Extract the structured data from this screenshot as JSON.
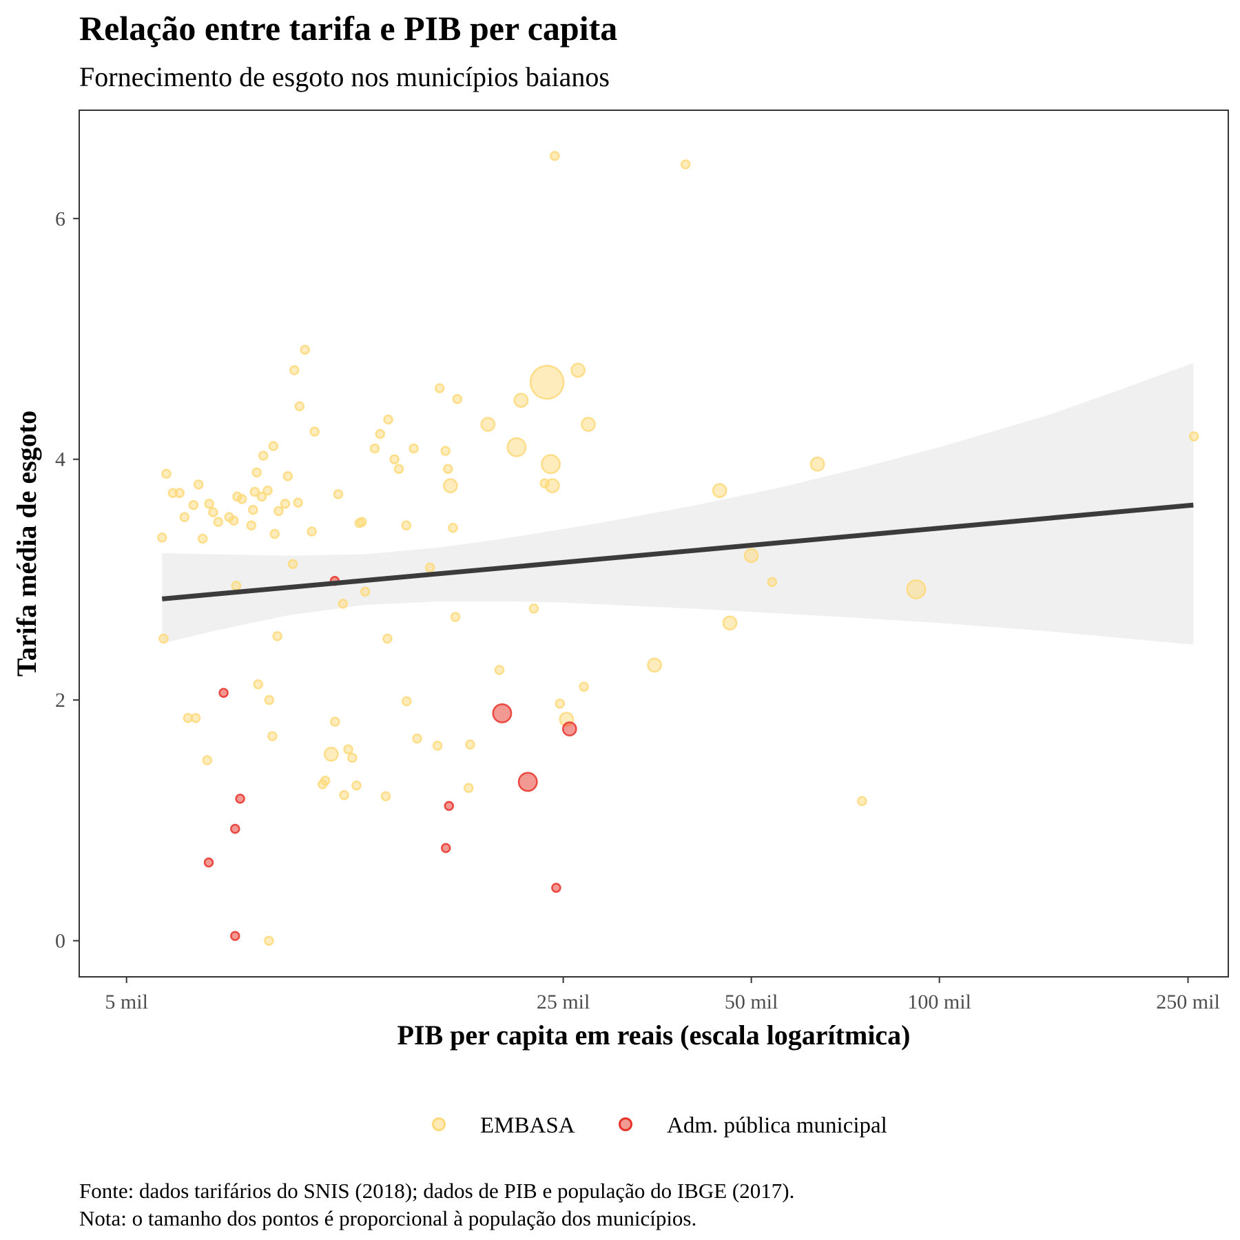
{
  "chart_data": {
    "type": "scatter",
    "title": "Relação entre tarifa e PIB per capita",
    "subtitle": "Fornecimento de esgoto nos municípios baianos",
    "xlabel": "PIB per capita em reais (escala logarítmica)",
    "ylabel": "Tarifa média de esgoto",
    "x_scale": "log",
    "xlim": [
      4200,
      290000
    ],
    "ylim": [
      -0.3,
      6.9
    ],
    "x_ticks": [
      {
        "value": 5000,
        "label": "5 mil"
      },
      {
        "value": 25000,
        "label": "25 mil"
      },
      {
        "value": 50000,
        "label": "50 mil"
      },
      {
        "value": 100000,
        "label": "100 mil"
      },
      {
        "value": 250000,
        "label": "250 mil"
      }
    ],
    "y_ticks": [
      {
        "value": 0,
        "label": "0"
      },
      {
        "value": 2,
        "label": "2"
      },
      {
        "value": 4,
        "label": "4"
      },
      {
        "value": 6,
        "label": "6"
      }
    ],
    "grid": false,
    "legend_position": "bottom",
    "colors": {
      "EMBASA": "#FDD97A",
      "Adm. pública municipal": "#E8332A",
      "trend": "#3B3B3B",
      "ribbon": "#E8E8E8"
    },
    "series": [
      {
        "name": "EMBASA",
        "points": [
          [
            5700,
            3.35,
            1
          ],
          [
            5730,
            2.51,
            1
          ],
          [
            5790,
            3.88,
            1
          ],
          [
            5930,
            3.72,
            1
          ],
          [
            6080,
            3.72,
            1
          ],
          [
            6190,
            3.52,
            1
          ],
          [
            6270,
            1.85,
            1
          ],
          [
            6400,
            3.62,
            1
          ],
          [
            6450,
            1.85,
            1
          ],
          [
            6520,
            3.79,
            1
          ],
          [
            6620,
            3.34,
            1
          ],
          [
            6730,
            1.5,
            1
          ],
          [
            6780,
            3.63,
            1
          ],
          [
            6880,
            3.56,
            1
          ],
          [
            7010,
            3.48,
            1
          ],
          [
            7300,
            3.52,
            1
          ],
          [
            7420,
            3.49,
            1
          ],
          [
            7490,
            2.95,
            1
          ],
          [
            7520,
            3.69,
            1
          ],
          [
            7650,
            3.67,
            1
          ],
          [
            7920,
            3.45,
            1
          ],
          [
            7970,
            3.58,
            1
          ],
          [
            8020,
            3.73,
            1
          ],
          [
            8080,
            3.89,
            1
          ],
          [
            8120,
            2.13,
            1
          ],
          [
            8230,
            3.69,
            1
          ],
          [
            8280,
            4.03,
            1
          ],
          [
            8410,
            3.74,
            1
          ],
          [
            8460,
            2.0,
            1
          ],
          [
            8560,
            1.7,
            1
          ],
          [
            8590,
            4.11,
            1
          ],
          [
            8630,
            3.38,
            1
          ],
          [
            8720,
            2.53,
            1
          ],
          [
            8760,
            3.57,
            1
          ],
          [
            8970,
            3.63,
            1
          ],
          [
            9060,
            3.86,
            1
          ],
          [
            9230,
            3.13,
            1
          ],
          [
            9280,
            4.74,
            1
          ],
          [
            9410,
            3.64,
            1
          ],
          [
            9460,
            4.44,
            1
          ],
          [
            9650,
            4.91,
            1
          ],
          [
            9900,
            3.4,
            1
          ],
          [
            10000,
            4.23,
            1
          ],
          [
            10300,
            1.3,
            1
          ],
          [
            10400,
            1.33,
            1
          ],
          [
            10630,
            1.55,
            2
          ],
          [
            10780,
            1.82,
            1
          ],
          [
            10910,
            3.71,
            1
          ],
          [
            11100,
            2.8,
            1
          ],
          [
            11150,
            1.21,
            1
          ],
          [
            11320,
            1.59,
            1
          ],
          [
            11490,
            1.52,
            1
          ],
          [
            11670,
            1.29,
            1
          ],
          [
            11800,
            3.47,
            1
          ],
          [
            11900,
            3.48,
            1
          ],
          [
            12050,
            2.9,
            1
          ],
          [
            12480,
            4.09,
            1
          ],
          [
            12730,
            4.21,
            1
          ],
          [
            13000,
            1.2,
            1
          ],
          [
            13080,
            2.51,
            1
          ],
          [
            13120,
            4.33,
            1
          ],
          [
            13420,
            4.0,
            1
          ],
          [
            13640,
            3.92,
            1
          ],
          [
            14020,
            3.45,
            1
          ],
          [
            14040,
            1.99,
            1
          ],
          [
            14410,
            4.09,
            1
          ],
          [
            14590,
            1.68,
            1
          ],
          [
            15300,
            3.1,
            1
          ],
          [
            15730,
            1.62,
            1
          ],
          [
            15850,
            4.59,
            1
          ],
          [
            16200,
            4.07,
            1
          ],
          [
            16350,
            3.92,
            1
          ],
          [
            16500,
            3.78,
            2
          ],
          [
            16650,
            3.43,
            1
          ],
          [
            16800,
            2.69,
            1
          ],
          [
            16920,
            4.5,
            1
          ],
          [
            17640,
            1.27,
            1
          ],
          [
            17740,
            1.63,
            1
          ],
          [
            18940,
            4.29,
            2
          ],
          [
            19760,
            2.25,
            1
          ],
          [
            21050,
            4.1,
            3
          ],
          [
            21400,
            4.49,
            2
          ],
          [
            22430,
            2.76,
            1
          ],
          [
            23350,
            3.8,
            1
          ],
          [
            23550,
            4.64,
            6
          ],
          [
            23880,
            3.96,
            3
          ],
          [
            24020,
            3.78,
            2
          ],
          [
            24700,
            1.97,
            1
          ],
          [
            25300,
            1.84,
            2
          ],
          [
            26400,
            4.74,
            2
          ],
          [
            26980,
            2.11,
            1
          ],
          [
            27420,
            4.29,
            2
          ],
          [
            35000,
            2.29,
            2
          ],
          [
            39240,
            6.45,
            1
          ],
          [
            44500,
            3.74,
            2
          ],
          [
            46200,
            2.64,
            2
          ],
          [
            50000,
            3.2,
            2
          ],
          [
            54000,
            2.98,
            1
          ],
          [
            63800,
            3.96,
            2
          ],
          [
            75200,
            1.16,
            1
          ],
          [
            91800,
            2.92,
            3
          ],
          [
            255500,
            4.19,
            1
          ],
          [
            24230,
            6.52,
            1
          ],
          [
            8450,
            0.0,
            1
          ]
        ]
      },
      {
        "name": "Adm. pública municipal",
        "points": [
          [
            6770,
            0.65,
            1
          ],
          [
            7150,
            2.06,
            1
          ],
          [
            7460,
            0.04,
            1
          ],
          [
            7460,
            0.93,
            1
          ],
          [
            7600,
            1.18,
            1
          ],
          [
            10770,
            2.99,
            1
          ],
          [
            16220,
            0.77,
            1
          ],
          [
            16410,
            1.12,
            1
          ],
          [
            19960,
            1.89,
            3
          ],
          [
            21940,
            1.32,
            3
          ],
          [
            24360,
            0.44,
            1
          ],
          [
            25590,
            1.76,
            2
          ]
        ]
      }
    ],
    "trend_line": {
      "x": [
        5700,
        255000
      ],
      "y": [
        2.84,
        3.62
      ]
    },
    "confidence_band": {
      "x": [
        5700,
        7000,
        9000,
        12000,
        16000,
        20000,
        25000,
        30000,
        40000,
        55000,
        75000,
        100000,
        150000,
        200000,
        255000
      ],
      "lower": [
        2.47,
        2.58,
        2.7,
        2.79,
        2.82,
        2.82,
        2.81,
        2.79,
        2.76,
        2.72,
        2.68,
        2.64,
        2.57,
        2.51,
        2.46
      ],
      "upper": [
        3.22,
        3.21,
        3.2,
        3.21,
        3.27,
        3.34,
        3.42,
        3.49,
        3.61,
        3.76,
        3.93,
        4.1,
        4.37,
        4.6,
        4.8
      ]
    }
  },
  "legend": {
    "items": [
      {
        "label": "EMBASA"
      },
      {
        "label": "Adm. pública municipal"
      }
    ]
  },
  "caption": {
    "line1": "Fonte: dados tarifários do SNIS (2018); dados de PIB e população do IBGE (2017).",
    "line2": "Nota: o tamanho dos pontos é proporcional à população dos municípios."
  }
}
